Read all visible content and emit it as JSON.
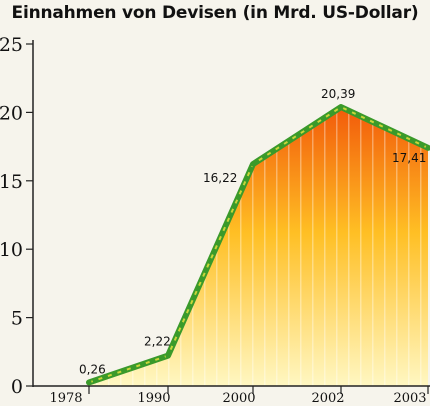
{
  "chart_data": {
    "type": "area",
    "title": "Einnahmen von Devisen (in Mrd. US-Dollar)",
    "xlabel": "",
    "ylabel": "",
    "x": [
      "1978",
      "1990",
      "2000",
      "2002",
      "2003"
    ],
    "values": [
      0.26,
      2.22,
      16.22,
      20.39,
      17.41
    ],
    "data_labels": [
      "0,26",
      "2,22",
      "16,22",
      "20,39",
      "17,41"
    ],
    "yticks": [
      "0",
      "5",
      "10",
      "15",
      "20",
      "25"
    ],
    "ylim": [
      0,
      25
    ],
    "grid": false,
    "colors": {
      "line": "#3a9a2a",
      "line_dash": "#c8d63a",
      "fill_top": "#f25a0a",
      "fill_mid": "#ffbf24",
      "fill_bottom": "#fff7c2"
    }
  }
}
